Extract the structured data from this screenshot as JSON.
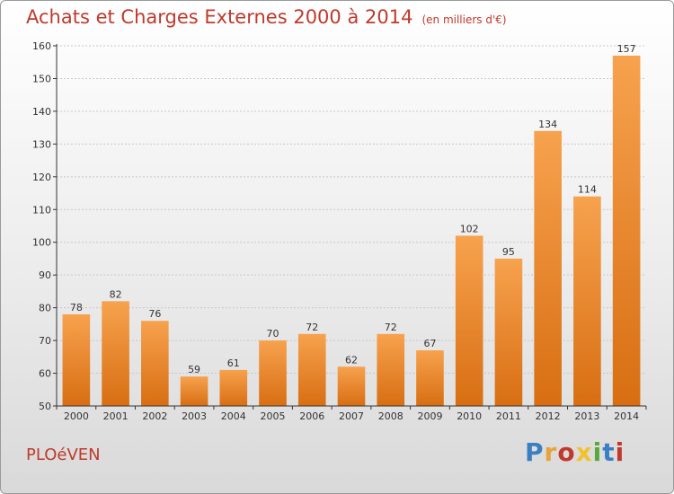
{
  "header": {
    "title": "Achats et Charges Externes 2000 à 2014",
    "subtitle": "(en milliers d'€)"
  },
  "footer": {
    "commune": "PLOéVEN",
    "logo_text": "Proxiti",
    "logo_colors": [
      "#3a7fc1",
      "#e8a33d",
      "#c0392b",
      "#f2c12e",
      "#5aa83a",
      "#3a7fc1",
      "#c0392b"
    ]
  },
  "colors": {
    "bar_top": "#f7a24e",
    "bar_bottom": "#d86e12",
    "grid": "#c8c8c8",
    "axis": "#333333"
  },
  "chart_data": {
    "type": "bar",
    "title": "Achats et Charges Externes 2000 à 2014",
    "xlabel": "",
    "ylabel": "",
    "categories": [
      "2000",
      "2001",
      "2002",
      "2003",
      "2004",
      "2005",
      "2006",
      "2007",
      "2008",
      "2009",
      "2010",
      "2011",
      "2012",
      "2013",
      "2014"
    ],
    "values": [
      78,
      82,
      76,
      59,
      61,
      70,
      72,
      62,
      72,
      67,
      102,
      95,
      134,
      114,
      157
    ],
    "ylim": [
      50,
      160
    ],
    "yticks": [
      50,
      60,
      70,
      80,
      90,
      100,
      110,
      120,
      130,
      140,
      150,
      160
    ],
    "grid": true
  }
}
